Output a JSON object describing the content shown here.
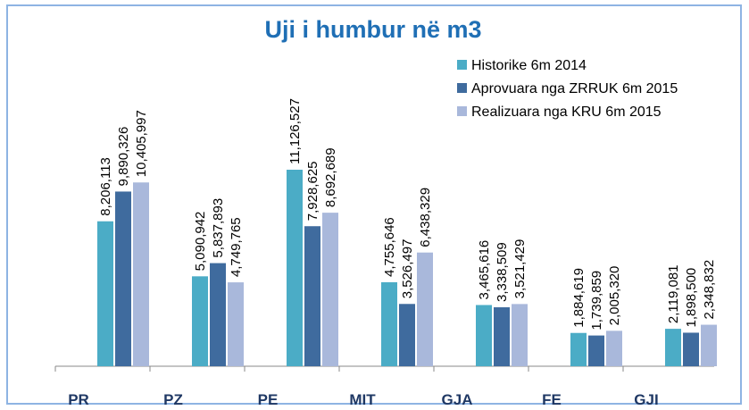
{
  "chart_data": {
    "type": "bar",
    "title": "Uji i humbur në m3",
    "categories": [
      "PR",
      "PZ",
      "PE",
      "MIT",
      "GJA",
      "FE",
      "GJI"
    ],
    "series": [
      {
        "name": "Historike 6m 2014",
        "color": "#4bacc6",
        "values": [
          8206113,
          5090942,
          11126527,
          4755646,
          3465616,
          1884619,
          2119081
        ],
        "value_labels": [
          "8,206,113",
          "5,090,942",
          "11,126,527",
          "4,755,646",
          "3,465,616",
          "1,884,619",
          "2,119,081"
        ]
      },
      {
        "name": "Aprovuara nga ZRRUK 6m 2015",
        "color": "#3f6b9e",
        "values": [
          9890326,
          5837893,
          7928625,
          3526497,
          3338509,
          1739859,
          1898500
        ],
        "value_labels": [
          "9,890,326",
          "5,837,893",
          "7,928,625",
          "3,526,497",
          "3,338,509",
          "1,739,859",
          "1,898,500"
        ]
      },
      {
        "name": "Realizuara nga KRU 6m 2015",
        "color": "#a9b8db",
        "values": [
          10405997,
          4749765,
          8692689,
          6438329,
          3521429,
          2005320,
          2348832
        ],
        "value_labels": [
          "10,405,997",
          "4,749,765",
          "8,692,689",
          "6,438,329",
          "3,521,429",
          "2,005,320",
          "2,348,832"
        ]
      }
    ]
  }
}
